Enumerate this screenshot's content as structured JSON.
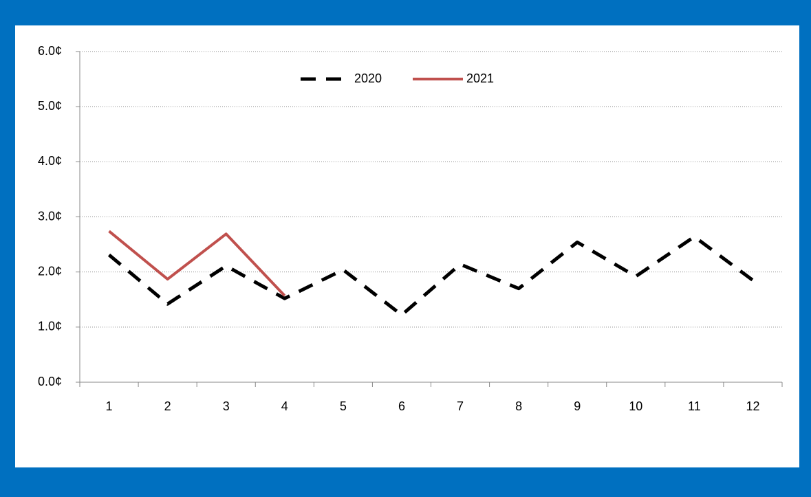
{
  "chart_data": {
    "type": "line",
    "categories": [
      "1",
      "2",
      "3",
      "4",
      "5",
      "6",
      "7",
      "8",
      "9",
      "10",
      "11",
      "12"
    ],
    "series": [
      {
        "name": "2020",
        "color": "#000000",
        "dash": true,
        "values": [
          2.31,
          1.42,
          2.11,
          1.52,
          2.04,
          1.22,
          2.14,
          1.7,
          2.54,
          1.92,
          2.64,
          1.85
        ]
      },
      {
        "name": "2021",
        "color": "#c0504d",
        "dash": false,
        "values": [
          2.74,
          1.87,
          2.69,
          1.57,
          null,
          null,
          null,
          null,
          null,
          null,
          null,
          null
        ]
      }
    ],
    "ylim": [
      0,
      6
    ],
    "yticks": [
      {
        "value": 0,
        "label": "0.0¢"
      },
      {
        "value": 1,
        "label": "1.0¢"
      },
      {
        "value": 2,
        "label": "2.0¢"
      },
      {
        "value": 3,
        "label": "3.0¢"
      },
      {
        "value": 4,
        "label": "4.0¢"
      },
      {
        "value": 5,
        "label": "5.0¢"
      },
      {
        "value": 6,
        "label": "6.0¢"
      }
    ],
    "grid": true,
    "legend": "top"
  }
}
